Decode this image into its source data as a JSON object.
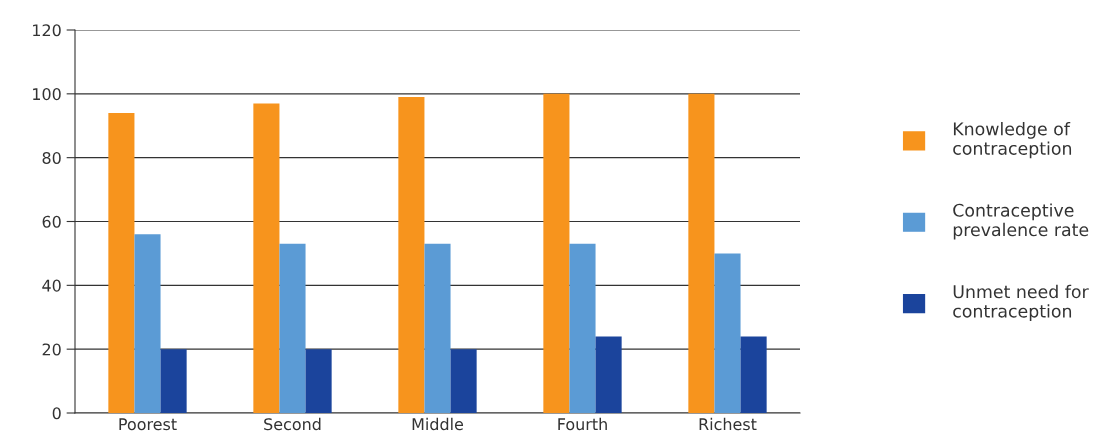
{
  "chart_data": {
    "type": "bar",
    "categories": [
      "Poorest",
      "Second",
      "Middle",
      "Fourth",
      "Richest"
    ],
    "series": [
      {
        "name": "Knowledge of\ncontraception",
        "color": "#f7941d",
        "values": [
          94,
          97,
          99,
          100,
          100
        ]
      },
      {
        "name": "Contraceptive\nprevalence rate",
        "color": "#5b9bd5",
        "values": [
          56,
          53,
          53,
          53,
          50
        ]
      },
      {
        "name": "Unmet need for\ncontraception",
        "color": "#1b449c",
        "values": [
          20,
          20,
          20,
          24,
          24
        ]
      }
    ],
    "ylim": [
      0,
      120
    ],
    "yticks": [
      0,
      20,
      40,
      60,
      80,
      100,
      120
    ],
    "grid": "y",
    "legend": "right"
  }
}
